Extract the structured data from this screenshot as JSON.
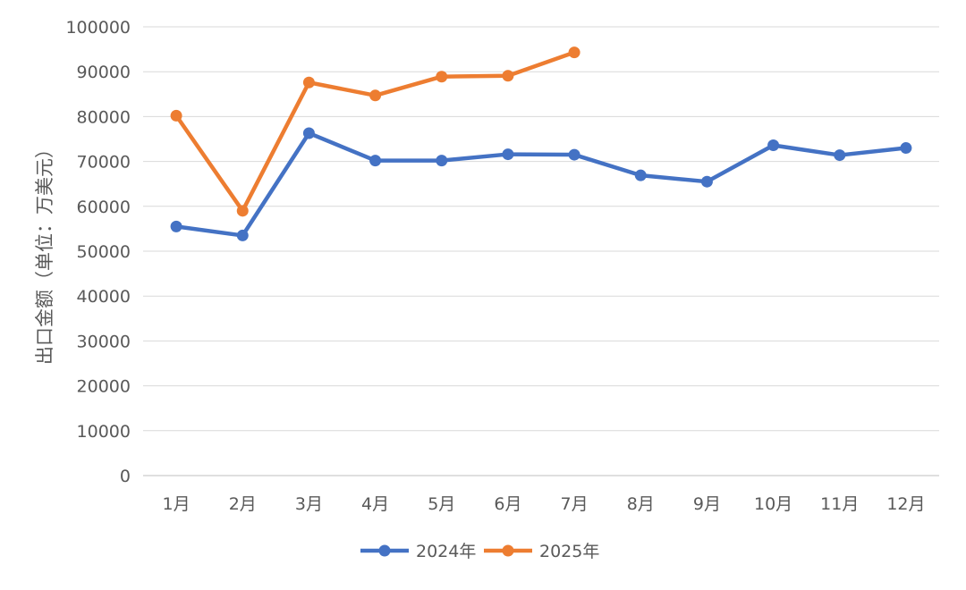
{
  "chart_data": {
    "type": "line",
    "title": "",
    "ylabel": "出口金额（单位：万美元）",
    "xlabel": "",
    "categories": [
      "1月",
      "2月",
      "3月",
      "4月",
      "5月",
      "6月",
      "7月",
      "8月",
      "9月",
      "10月",
      "11月",
      "12月"
    ],
    "ylim": [
      0,
      100000
    ],
    "yticks": [
      0,
      10000,
      20000,
      30000,
      40000,
      50000,
      60000,
      70000,
      80000,
      90000,
      100000
    ],
    "ytick_labels": [
      "0",
      "10000",
      "20000",
      "30000",
      "40000",
      "50000",
      "60000",
      "70000",
      "80000",
      "90000",
      "100000"
    ],
    "grid": true,
    "legend_position": "bottom",
    "series": [
      {
        "name": "2024年",
        "color": "#4472C4",
        "values": [
          55500,
          53500,
          76300,
          70200,
          70200,
          71600,
          71500,
          66900,
          65500,
          73600,
          71400,
          73000
        ]
      },
      {
        "name": "2025年",
        "color": "#ED7D31",
        "values": [
          80200,
          59000,
          87600,
          84700,
          88900,
          89100,
          94300,
          null,
          null,
          null,
          null,
          null
        ]
      }
    ]
  }
}
